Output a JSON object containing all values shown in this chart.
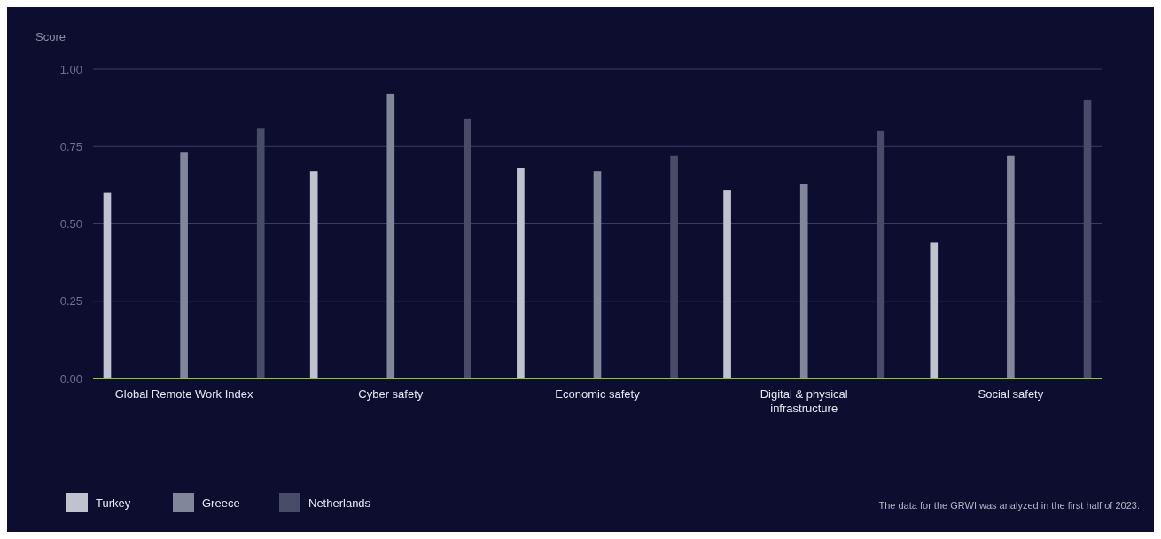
{
  "chart_data": {
    "type": "bar",
    "ylabel": "Score",
    "categories": [
      "Global Remote Work Index",
      "Cyber safety",
      "Economic safety",
      "Digital & physical infrastructure",
      "Social safety"
    ],
    "series": [
      {
        "name": "Turkey",
        "color": "#c0c2ce",
        "values": [
          0.6,
          0.67,
          0.68,
          0.61,
          0.44
        ]
      },
      {
        "name": "Greece",
        "color": "#818698",
        "values": [
          0.73,
          0.92,
          0.67,
          0.63,
          0.72
        ]
      },
      {
        "name": "Netherlands",
        "color": "#494c68",
        "values": [
          0.81,
          0.84,
          0.72,
          0.8,
          0.9
        ]
      }
    ],
    "ylim": [
      0,
      1
    ],
    "yticks": [
      {
        "value": 0,
        "label": "0.00"
      },
      {
        "value": 0.25,
        "label": "0.25"
      },
      {
        "value": 0.5,
        "label": "0.50"
      },
      {
        "value": 0.75,
        "label": "0.75"
      },
      {
        "value": 1,
        "label": "1.00"
      }
    ],
    "grid": "y",
    "legend": "bottom left",
    "annotations": [
      "The data for the GRWI was analyzed in the first half of 2023."
    ]
  }
}
